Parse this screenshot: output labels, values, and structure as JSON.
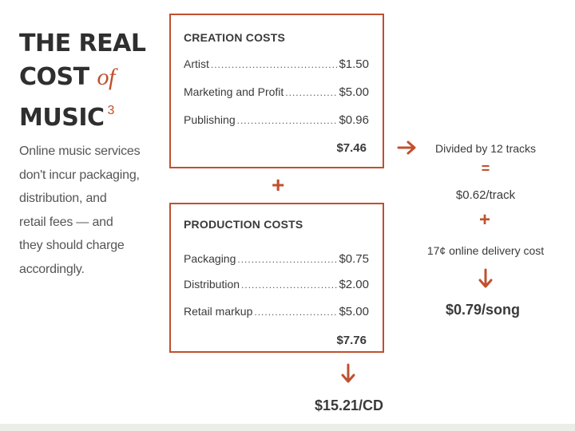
{
  "title": {
    "line1": "THE REAL",
    "line2_word": "COST",
    "line2_of": "of",
    "line3": "MUSIC",
    "footnote": "3"
  },
  "blurb": [
    "Online music services",
    "don't incur packaging,",
    "distribution, and",
    "retail fees — and",
    "they should charge",
    "accordingly."
  ],
  "creation": {
    "heading": "CREATION COSTS",
    "items": [
      {
        "label": "Artist",
        "value": "$1.50"
      },
      {
        "label": "Marketing and Profit",
        "value": "$5.00"
      },
      {
        "label": "Publishing",
        "value": "$0.96"
      }
    ],
    "total": "$7.46"
  },
  "production": {
    "heading": "PRODUCTION COSTS",
    "items": [
      {
        "label": "Packaging",
        "value": "$0.75"
      },
      {
        "label": "Distribution",
        "value": "$2.00"
      },
      {
        "label": "Retail markup",
        "value": "$5.00"
      }
    ],
    "total": "$7.76"
  },
  "cd_result": "$15.21/CD",
  "online": {
    "divided": "Divided by 12 tracks",
    "equals": "=",
    "per_track": "$0.62/track",
    "delivery": "17¢ online delivery cost",
    "per_song": "$0.79/song"
  },
  "symbols": {
    "plus": "+"
  },
  "colors": {
    "accent": "#c0502e",
    "text": "#3a3a3a"
  }
}
